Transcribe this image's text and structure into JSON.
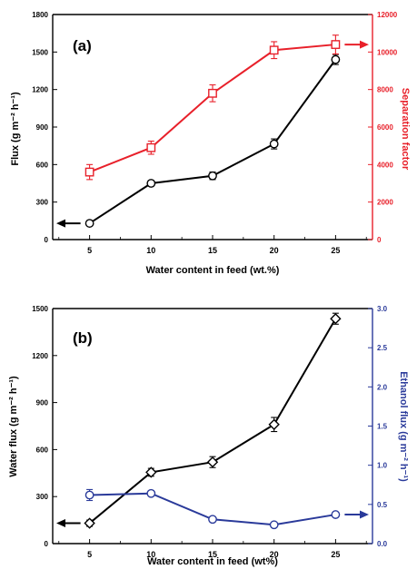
{
  "chart_data": [
    {
      "panel_label": "(a)",
      "type": "line",
      "x": [
        5,
        10,
        15,
        20,
        25
      ],
      "x_ticks": [
        5,
        10,
        15,
        20,
        25
      ],
      "xlim": [
        2,
        28
      ],
      "xlabel": "Water content in feed (wt.%)",
      "y_axes": {
        "left": {
          "label": "Flux (g m⁻² h⁻¹)",
          "lim": [
            0,
            1800
          ],
          "ticks": [
            0,
            300,
            600,
            900,
            1200,
            1500,
            1800
          ],
          "color": "#000000"
        },
        "right": {
          "label": "Separation factor",
          "lim": [
            0,
            12000
          ],
          "ticks": [
            0,
            2000,
            4000,
            6000,
            8000,
            10000,
            12000
          ],
          "color": "#e8202a"
        }
      },
      "series": [
        {
          "axis": "left",
          "marker": "circle",
          "color": "#000000",
          "values": [
            130,
            450,
            510,
            765,
            1440
          ],
          "errors": [
            20,
            20,
            30,
            40,
            40
          ]
        },
        {
          "axis": "right",
          "marker": "square",
          "color": "#e8202a",
          "values": [
            3600,
            4900,
            7800,
            10100,
            10400
          ],
          "errors": [
            400,
            350,
            450,
            450,
            500
          ]
        }
      ],
      "arrows": [
        {
          "axis": "left",
          "direction": "left",
          "color": "#000000"
        },
        {
          "axis": "right",
          "direction": "right",
          "color": "#e8202a"
        }
      ]
    },
    {
      "panel_label": "(b)",
      "type": "line",
      "x": [
        5,
        10,
        15,
        20,
        25
      ],
      "x_ticks": [
        5,
        10,
        15,
        20,
        25
      ],
      "xlim": [
        2,
        28
      ],
      "xlabel": "Water content in feed (wt%)",
      "y_axes": {
        "left": {
          "label": "Water flux (g m⁻² h⁻¹)",
          "lim": [
            0,
            1500
          ],
          "ticks": [
            0,
            300,
            600,
            900,
            1200,
            1500
          ],
          "color": "#000000"
        },
        "right": {
          "label": "Ethanol flux (g m⁻² h⁻¹)",
          "lim": [
            0,
            3.0
          ],
          "ticks": [
            "0.0",
            "0.5",
            "1.0",
            "1.5",
            "2.0",
            "2.5",
            "3.0"
          ],
          "color": "#2a3a9a"
        }
      },
      "series": [
        {
          "axis": "left",
          "marker": "diamond",
          "color": "#000000",
          "values": [
            130,
            455,
            520,
            760,
            1435
          ],
          "errors": [
            20,
            25,
            35,
            45,
            35
          ]
        },
        {
          "axis": "right",
          "marker": "circle",
          "color": "#2a3a9a",
          "values": [
            0.62,
            0.64,
            0.31,
            0.24,
            0.37
          ],
          "errors": [
            0.07,
            0.03,
            0.03,
            0.03,
            0.03
          ]
        }
      ],
      "arrows": [
        {
          "axis": "left",
          "direction": "left",
          "color": "#000000"
        },
        {
          "axis": "right",
          "direction": "right",
          "color": "#2a3a9a"
        }
      ]
    }
  ]
}
